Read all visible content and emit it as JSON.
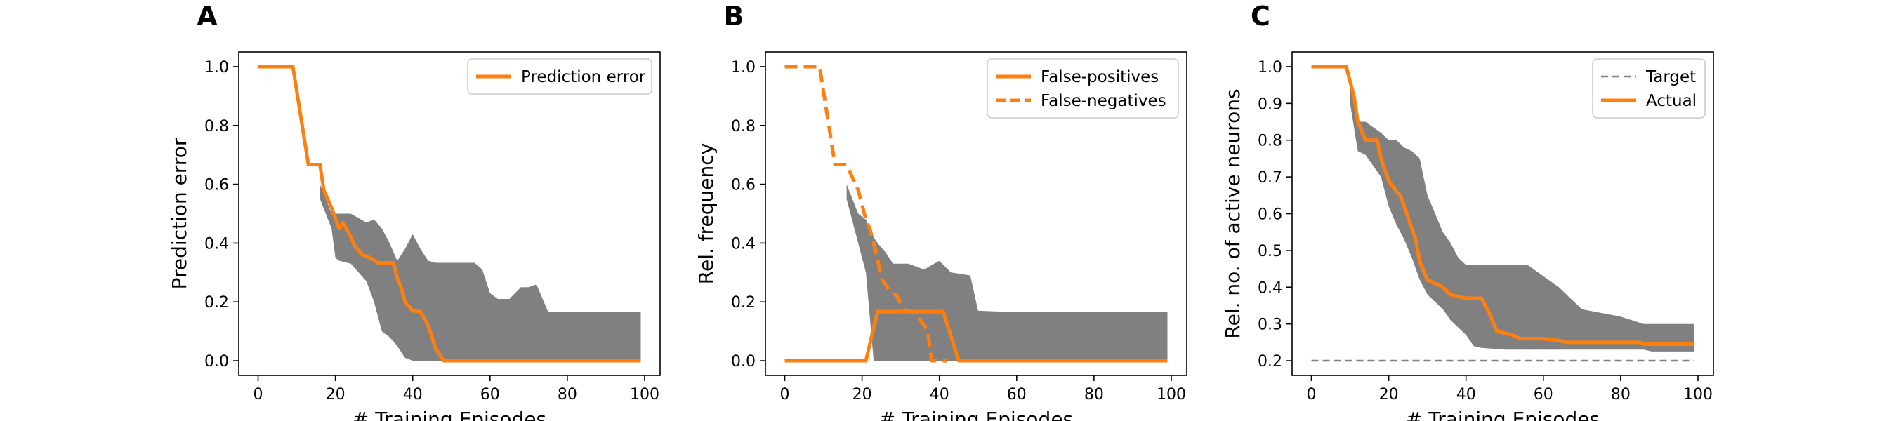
{
  "chart_data": [
    {
      "type": "line",
      "panel_label": "A",
      "xlabel": "# Training Episodes",
      "ylabel": "Prediction error",
      "xlim": [
        -5,
        104
      ],
      "ylim": [
        -0.05,
        1.05
      ],
      "xticks": [
        0,
        20,
        40,
        60,
        80,
        100
      ],
      "yticks": [
        0.0,
        0.2,
        0.4,
        0.6,
        0.8,
        1.0
      ],
      "yticks_labels": [
        "0.0",
        "0.2",
        "0.4",
        "0.6",
        "0.8",
        "1.0"
      ],
      "legend_position": "upper-right",
      "series": [
        {
          "name": "Prediction error",
          "color": "#ff7f0e",
          "style": "solid",
          "x": [
            0,
            9,
            13,
            16,
            17,
            19,
            21,
            22,
            24,
            25,
            27,
            29,
            31,
            33,
            35,
            36,
            37,
            38,
            40,
            42,
            44,
            46,
            48,
            99
          ],
          "y": [
            1.0,
            1.0,
            0.667,
            0.667,
            0.58,
            0.52,
            0.45,
            0.47,
            0.42,
            0.39,
            0.36,
            0.35,
            0.333,
            0.333,
            0.333,
            0.28,
            0.25,
            0.2,
            0.17,
            0.167,
            0.12,
            0.04,
            0.0,
            0.0
          ]
        }
      ],
      "band": {
        "color": "#808080",
        "x": [
          16,
          19,
          20,
          21,
          24,
          28,
          30,
          32,
          34,
          36,
          38,
          40,
          42,
          44,
          46,
          48,
          50,
          56,
          58,
          60,
          62,
          65,
          68,
          70,
          72,
          75,
          80,
          99
        ],
        "upper": [
          0.6,
          0.5,
          0.5,
          0.5,
          0.5,
          0.47,
          0.48,
          0.45,
          0.4,
          0.34,
          0.38,
          0.43,
          0.38,
          0.34,
          0.333,
          0.333,
          0.333,
          0.333,
          0.31,
          0.23,
          0.21,
          0.21,
          0.25,
          0.25,
          0.26,
          0.167,
          0.167,
          0.167
        ],
        "lower": [
          0.55,
          0.45,
          0.35,
          0.34,
          0.33,
          0.27,
          0.2,
          0.1,
          0.08,
          0.05,
          0.01,
          0.0,
          0.0,
          0.0,
          0.0,
          0.0,
          0.0,
          0.0,
          0.0,
          0.0,
          0.0,
          0.0,
          0.0,
          0.0,
          0.0,
          0.0,
          0.0,
          0.0
        ]
      }
    },
    {
      "type": "line",
      "panel_label": "B",
      "xlabel": "# Training Episodes",
      "ylabel": "Rel. frequency",
      "xlim": [
        -5,
        104
      ],
      "ylim": [
        -0.05,
        1.05
      ],
      "xticks": [
        0,
        20,
        40,
        60,
        80,
        100
      ],
      "yticks": [
        0.0,
        0.2,
        0.4,
        0.6,
        0.8,
        1.0
      ],
      "yticks_labels": [
        "0.0",
        "0.2",
        "0.4",
        "0.6",
        "0.8",
        "1.0"
      ],
      "legend_position": "upper-right",
      "series": [
        {
          "name": "False-positives",
          "color": "#ff7f0e",
          "style": "solid",
          "x": [
            0,
            21,
            24,
            41,
            45,
            99
          ],
          "y": [
            0.0,
            0.0,
            0.167,
            0.167,
            0.0,
            0.0
          ]
        },
        {
          "name": "False-negatives",
          "color": "#ff7f0e",
          "style": "dashed",
          "x": [
            0,
            9,
            13,
            16,
            19,
            21,
            22,
            24,
            25,
            27,
            29,
            31,
            33,
            35,
            37,
            38,
            40,
            42
          ],
          "y": [
            1.0,
            1.0,
            0.667,
            0.667,
            0.58,
            0.48,
            0.45,
            0.35,
            0.28,
            0.24,
            0.22,
            0.17,
            0.167,
            0.14,
            0.1,
            0.0,
            0.0,
            0.0
          ]
        }
      ],
      "band": {
        "color": "#808080",
        "x": [
          16,
          19,
          21,
          23,
          24,
          26,
          28,
          30,
          32,
          36,
          40,
          43,
          48,
          50,
          56,
          60,
          99
        ],
        "upper": [
          0.6,
          0.5,
          0.48,
          0.42,
          0.4,
          0.37,
          0.33,
          0.33,
          0.33,
          0.31,
          0.34,
          0.3,
          0.29,
          0.17,
          0.167,
          0.167,
          0.167
        ],
        "lower": [
          0.55,
          0.4,
          0.3,
          0.0,
          0.0,
          0.0,
          0.0,
          0.0,
          0.0,
          0.0,
          0.0,
          0.0,
          0.0,
          0.0,
          0.0,
          0.0,
          0.0
        ]
      }
    },
    {
      "type": "line",
      "panel_label": "C",
      "xlabel": "# Training Episodes",
      "ylabel": "Rel. no. of active neurons",
      "xlim": [
        -5,
        104
      ],
      "ylim": [
        0.16,
        1.04
      ],
      "xticks": [
        0,
        20,
        40,
        60,
        80,
        100
      ],
      "yticks": [
        0.2,
        0.3,
        0.4,
        0.5,
        0.6,
        0.7,
        0.8,
        0.9,
        1.0
      ],
      "yticks_labels": [
        "0.2",
        "0.3",
        "0.4",
        "0.5",
        "0.6",
        "0.7",
        "0.8",
        "0.9",
        "1.0"
      ],
      "legend_position": "upper-right",
      "series": [
        {
          "name": "Target",
          "color": "#808080",
          "style": "dashed",
          "x": [
            0,
            99
          ],
          "y": [
            0.2,
            0.2
          ]
        },
        {
          "name": "Actual",
          "color": "#ff7f0e",
          "style": "solid",
          "x": [
            0,
            9,
            11,
            12,
            14,
            17,
            18,
            20,
            22,
            23,
            25,
            27,
            28,
            30,
            32,
            34,
            36,
            38,
            40,
            42,
            44,
            46,
            48,
            50,
            52,
            54,
            60,
            64,
            66,
            70,
            85,
            86,
            90,
            99
          ],
          "y": [
            1.0,
            1.0,
            0.92,
            0.85,
            0.8,
            0.8,
            0.75,
            0.69,
            0.66,
            0.65,
            0.59,
            0.53,
            0.47,
            0.42,
            0.41,
            0.4,
            0.38,
            0.375,
            0.37,
            0.37,
            0.37,
            0.33,
            0.28,
            0.275,
            0.27,
            0.26,
            0.26,
            0.255,
            0.25,
            0.25,
            0.25,
            0.245,
            0.245,
            0.245
          ]
        }
      ],
      "band": {
        "color": "#808080",
        "x": [
          10,
          12,
          14,
          18,
          20,
          22,
          24,
          26,
          28,
          30,
          32,
          34,
          36,
          38,
          40,
          42,
          44,
          50,
          56,
          60,
          64,
          68,
          70,
          80,
          86,
          88,
          99
        ],
        "upper": [
          0.95,
          0.85,
          0.85,
          0.82,
          0.8,
          0.8,
          0.78,
          0.77,
          0.75,
          0.65,
          0.6,
          0.55,
          0.52,
          0.48,
          0.46,
          0.46,
          0.46,
          0.46,
          0.46,
          0.43,
          0.4,
          0.36,
          0.34,
          0.32,
          0.3,
          0.3,
          0.3
        ],
        "lower": [
          0.9,
          0.77,
          0.76,
          0.7,
          0.62,
          0.57,
          0.53,
          0.48,
          0.42,
          0.38,
          0.36,
          0.34,
          0.31,
          0.29,
          0.27,
          0.24,
          0.235,
          0.23,
          0.23,
          0.23,
          0.23,
          0.23,
          0.23,
          0.23,
          0.23,
          0.225,
          0.225
        ]
      }
    }
  ]
}
